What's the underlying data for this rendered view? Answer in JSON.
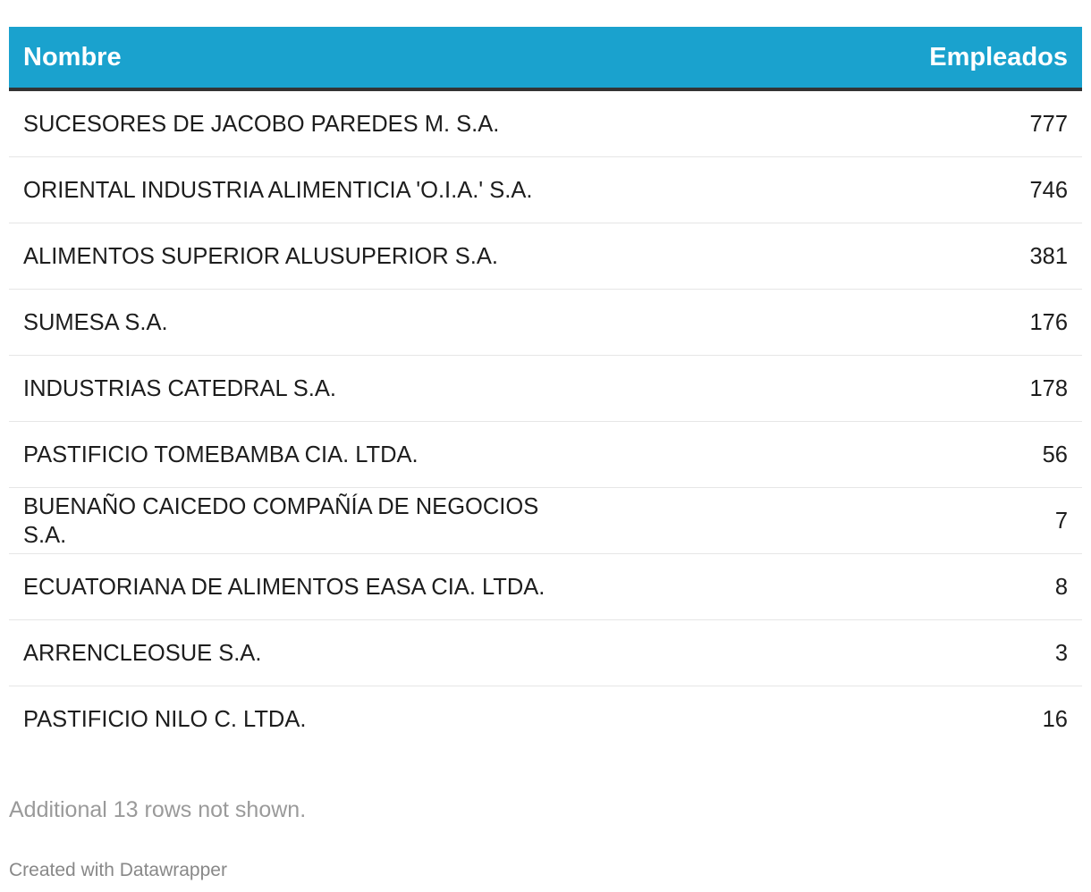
{
  "table": {
    "header": {
      "name": "Nombre",
      "value": "Empleados"
    },
    "header_color": "#1aa2ce",
    "rows": [
      {
        "name": "SUCESORES DE JACOBO PAREDES M. S.A.",
        "value": "777"
      },
      {
        "name": "ORIENTAL INDUSTRIA ALIMENTICIA 'O.I.A.' S.A.",
        "value": "746"
      },
      {
        "name": "ALIMENTOS SUPERIOR ALUSUPERIOR S.A.",
        "value": "381"
      },
      {
        "name": "SUMESA S.A.",
        "value": "176"
      },
      {
        "name": "INDUSTRIAS CATEDRAL S.A.",
        "value": "178"
      },
      {
        "name": "PASTIFICIO TOMEBAMBA CIA. LTDA.",
        "value": "56"
      },
      {
        "name": "BUENAÑO CAICEDO COMPAÑÍA DE NEGOCIOS S.A.",
        "value": "7"
      },
      {
        "name": "ECUATORIANA DE ALIMENTOS EASA CIA. LTDA.",
        "value": "8"
      },
      {
        "name": "ARRENCLEOSUE S.A.",
        "value": "3"
      },
      {
        "name": "PASTIFICIO NILO C. LTDA.",
        "value": "16"
      }
    ]
  },
  "notes": "Additional 13 rows not shown.",
  "credit": "Created with Datawrapper"
}
